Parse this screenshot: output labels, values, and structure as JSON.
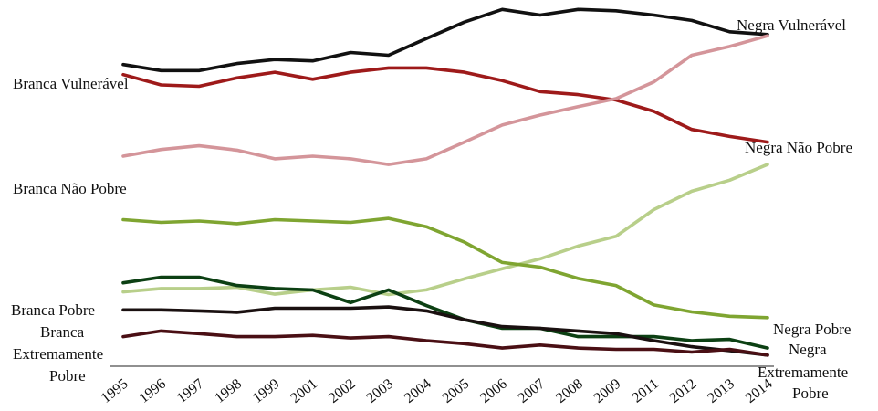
{
  "chart_data": {
    "type": "line",
    "x": [
      "1995",
      "1996",
      "1997",
      "1998",
      "1999",
      "2001",
      "2002",
      "2003",
      "2004",
      "2005",
      "2006",
      "2007",
      "2008",
      "2009",
      "2011",
      "2012",
      "2013",
      "2014"
    ],
    "ylim": [
      0,
      100
    ],
    "grid": false,
    "legend": "none",
    "series": [
      {
        "name": "Negra Vulnerável",
        "color": "#111111",
        "values": [
          85.6,
          83.8,
          83.8,
          85.9,
          87.1,
          86.7,
          89.2,
          88.4,
          93.4,
          98.3,
          102.1,
          100.4,
          102.1,
          101.7,
          100.4,
          98.8,
          95.4,
          94.6
        ]
      },
      {
        "name": "Branca Vulnerável",
        "color": "#9e1a1a",
        "values": [
          82.6,
          79.5,
          79.1,
          81.6,
          83.3,
          81.2,
          83.3,
          84.6,
          84.6,
          83.3,
          80.8,
          77.5,
          76.6,
          75.0,
          71.6,
          66.2,
          64.1,
          62.4
        ]
      },
      {
        "name": "Negra Não Pobre",
        "color": "#d4959a",
        "values": [
          58.2,
          60.2,
          61.3,
          60.0,
          57.4,
          58.2,
          57.4,
          55.7,
          57.4,
          62.4,
          67.5,
          70.5,
          73.0,
          75.4,
          80.4,
          88.4,
          91.0,
          94.2
        ]
      },
      {
        "name": "Branca Não Pobre",
        "color": "#b8cf8a",
        "values": [
          17.6,
          18.6,
          18.6,
          19.0,
          16.9,
          18.2,
          19.0,
          16.8,
          18.2,
          21.5,
          24.5,
          27.5,
          31.3,
          34.2,
          42.2,
          47.7,
          51.0,
          55.7
        ]
      },
      {
        "name": "Negra Pobre",
        "color": "#7fa531",
        "values": [
          39.2,
          38.4,
          38.8,
          38.0,
          39.2,
          38.8,
          38.4,
          39.6,
          37.1,
          32.5,
          26.4,
          25.0,
          21.6,
          19.5,
          13.7,
          11.6,
          10.3,
          9.9
        ]
      },
      {
        "name": "Branca Pobre",
        "color": "#0c4013",
        "values": [
          20.3,
          22.0,
          22.0,
          19.5,
          18.6,
          18.2,
          14.4,
          18.2,
          13.5,
          9.3,
          6.7,
          6.7,
          4.2,
          4.2,
          4.2,
          3.0,
          3.4,
          0.8
        ]
      },
      {
        "name": "Branca Extremamente Pobre",
        "color": "#1a1010",
        "values": [
          12.2,
          12.2,
          11.9,
          11.5,
          12.7,
          12.7,
          12.7,
          13.1,
          11.9,
          9.3,
          7.2,
          6.7,
          5.9,
          5.1,
          3.0,
          1.2,
          0.0,
          -1.3
        ]
      },
      {
        "name": "Negra Extremamente Pobre",
        "color": "#4a0f14",
        "values": [
          4.2,
          5.9,
          5.1,
          4.2,
          4.2,
          4.6,
          3.8,
          4.2,
          3.0,
          2.1,
          0.8,
          1.7,
          0.8,
          0.4,
          0.4,
          -0.4,
          0.4,
          -1.3
        ]
      }
    ],
    "annotations": [
      {
        "text": "Branca Vulnerável",
        "series": "Branca Vulnerável"
      },
      {
        "text": "Negra Vulnerável",
        "series": "Negra Vulnerável"
      },
      {
        "text": "Negra Não Pobre",
        "series": "Branca Vulnerável"
      },
      {
        "text": "Branca Não Pobre",
        "series": "Negra Não Pobre"
      },
      {
        "text": "Branca Pobre",
        "series": "Branca Pobre"
      },
      {
        "text": "Branca",
        "series": "Branca Extremamente Pobre"
      },
      {
        "text": "Extremamente",
        "series": "Branca Extremamente Pobre"
      },
      {
        "text": "Pobre",
        "series": "Branca Extremamente Pobre"
      },
      {
        "text": "Negra Pobre",
        "series": "Negra Pobre"
      },
      {
        "text": "Negra",
        "series": "Negra Extremamente Pobre"
      },
      {
        "text": "Extremamente",
        "series": "Negra Extremamente Pobre"
      },
      {
        "text": "Pobre",
        "series": "Negra Extremamente Pobre"
      }
    ]
  }
}
